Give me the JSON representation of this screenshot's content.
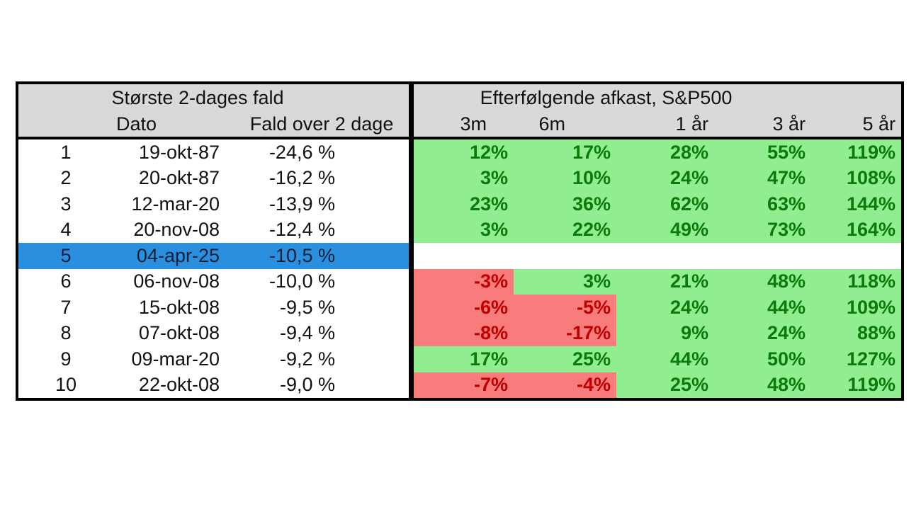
{
  "table": {
    "left": {
      "title": "Største 2-dages fald",
      "headers": {
        "dato": "Dato",
        "fald": "Fald over 2 dage"
      },
      "rows": [
        {
          "rank": "1",
          "date": "19-okt-87",
          "fall": "-24,6 %"
        },
        {
          "rank": "2",
          "date": "20-okt-87",
          "fall": "-16,2 %"
        },
        {
          "rank": "3",
          "date": "12-mar-20",
          "fall": "-13,9 %"
        },
        {
          "rank": "4",
          "date": "20-nov-08",
          "fall": "-12,4 %"
        },
        {
          "rank": "5",
          "date": "04-apr-25",
          "fall": "-10,5 %",
          "bg": "#2B8FE0",
          "fg": "#0E1F38"
        },
        {
          "rank": "6",
          "date": "06-nov-08",
          "fall": "-10,0 %"
        },
        {
          "rank": "7",
          "date": "15-okt-08",
          "fall": "-9,5 %"
        },
        {
          "rank": "8",
          "date": "07-okt-08",
          "fall": "-9,4 %"
        },
        {
          "rank": "9",
          "date": "09-mar-20",
          "fall": "-9,2 %"
        },
        {
          "rank": "10",
          "date": "22-okt-08",
          "fall": "-9,0 %"
        }
      ]
    },
    "right": {
      "title": "Efterfølgende afkast, S&P500",
      "headers": [
        "3m",
        "6m",
        "1 år",
        "3 år",
        "5 år"
      ],
      "rows": [
        {
          "values": [
            "12%",
            "17%",
            "28%",
            "55%",
            "119%"
          ],
          "bg": [
            "#90EE90",
            "#90EE90",
            "#90EE90",
            "#90EE90",
            "#90EE90"
          ],
          "fg": [
            "#0B7A0B",
            "#0B7A0B",
            "#0B7A0B",
            "#0B7A0B",
            "#0B7A0B"
          ]
        },
        {
          "values": [
            "3%",
            "10%",
            "24%",
            "47%",
            "108%"
          ],
          "bg": [
            "#90EE90",
            "#90EE90",
            "#90EE90",
            "#90EE90",
            "#90EE90"
          ],
          "fg": [
            "#0B7A0B",
            "#0B7A0B",
            "#0B7A0B",
            "#0B7A0B",
            "#0B7A0B"
          ]
        },
        {
          "values": [
            "23%",
            "36%",
            "62%",
            "63%",
            "144%"
          ],
          "bg": [
            "#90EE90",
            "#90EE90",
            "#90EE90",
            "#90EE90",
            "#90EE90"
          ],
          "fg": [
            "#0B7A0B",
            "#0B7A0B",
            "#0B7A0B",
            "#0B7A0B",
            "#0B7A0B"
          ]
        },
        {
          "values": [
            "3%",
            "22%",
            "49%",
            "73%",
            "164%"
          ],
          "bg": [
            "#90EE90",
            "#90EE90",
            "#90EE90",
            "#90EE90",
            "#90EE90"
          ],
          "fg": [
            "#0B7A0B",
            "#0B7A0B",
            "#0B7A0B",
            "#0B7A0B",
            "#0B7A0B"
          ]
        },
        {
          "values": [
            "",
            "",
            "",
            "",
            ""
          ],
          "bg": [
            "#FFFFFF",
            "#FFFFFF",
            "#FFFFFF",
            "#FFFFFF",
            "#FFFFFF"
          ],
          "fg": [
            "#000000",
            "#000000",
            "#000000",
            "#000000",
            "#000000"
          ]
        },
        {
          "values": [
            "-3%",
            "3%",
            "21%",
            "48%",
            "118%"
          ],
          "bg": [
            "#F87C7C",
            "#90EE90",
            "#90EE90",
            "#90EE90",
            "#90EE90"
          ],
          "fg": [
            "#C00000",
            "#0B7A0B",
            "#0B7A0B",
            "#0B7A0B",
            "#0B7A0B"
          ]
        },
        {
          "values": [
            "-6%",
            "-5%",
            "24%",
            "44%",
            "109%"
          ],
          "bg": [
            "#F87C7C",
            "#F87C7C",
            "#90EE90",
            "#90EE90",
            "#90EE90"
          ],
          "fg": [
            "#C00000",
            "#C00000",
            "#0B7A0B",
            "#0B7A0B",
            "#0B7A0B"
          ]
        },
        {
          "values": [
            "-8%",
            "-17%",
            "9%",
            "24%",
            "88%"
          ],
          "bg": [
            "#F87C7C",
            "#F87C7C",
            "#90EE90",
            "#90EE90",
            "#90EE90"
          ],
          "fg": [
            "#C00000",
            "#C00000",
            "#0B7A0B",
            "#0B7A0B",
            "#0B7A0B"
          ]
        },
        {
          "values": [
            "17%",
            "25%",
            "44%",
            "50%",
            "127%"
          ],
          "bg": [
            "#90EE90",
            "#90EE90",
            "#90EE90",
            "#90EE90",
            "#90EE90"
          ],
          "fg": [
            "#0B7A0B",
            "#0B7A0B",
            "#0B7A0B",
            "#0B7A0B",
            "#0B7A0B"
          ]
        },
        {
          "values": [
            "-7%",
            "-4%",
            "25%",
            "48%",
            "119%"
          ],
          "bg": [
            "#F87C7C",
            "#F87C7C",
            "#90EE90",
            "#90EE90",
            "#90EE90"
          ],
          "fg": [
            "#C00000",
            "#C00000",
            "#0B7A0B",
            "#0B7A0B",
            "#0B7A0B"
          ]
        }
      ]
    },
    "colors": {
      "header_bg": "#D9D9D9",
      "positive_bg": "#90EE90",
      "positive_fg": "#0B7A0B",
      "negative_bg": "#F87C7C",
      "negative_fg": "#C00000",
      "highlight_bg": "#2B8FE0",
      "highlight_fg": "#0E1F38",
      "border": "#000000"
    }
  }
}
